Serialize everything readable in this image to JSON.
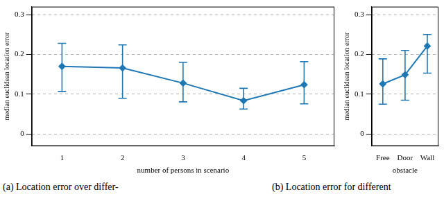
{
  "chart_data": [
    {
      "type": "line",
      "caption": "(a) Location error over differ-",
      "x_label": "number of persons in scenario",
      "y_label": "median euclidean location error",
      "x": [
        1,
        2,
        3,
        4,
        5
      ],
      "values": [
        0.17,
        0.166,
        0.128,
        0.084,
        0.124
      ],
      "error_low": [
        0.107,
        0.09,
        0.081,
        0.063,
        0.076
      ],
      "error_high": [
        0.228,
        0.224,
        0.18,
        0.115,
        0.182
      ],
      "color": "#1f78b4",
      "marker": "diamond",
      "xlim": [
        0.5,
        5.5
      ],
      "xticks": [
        1,
        2,
        3,
        4,
        5
      ],
      "ylim": [
        -0.03,
        0.32
      ],
      "yticks": [
        0,
        0.1,
        0.2,
        0.3
      ],
      "grid": true
    },
    {
      "type": "line",
      "caption": "(b) Location error for different",
      "x_label": "obstacle",
      "y_label": "median euclidean location error",
      "categories": [
        "Free",
        "Door",
        "Wall"
      ],
      "values": [
        0.126,
        0.149,
        0.221
      ],
      "error_low": [
        0.075,
        0.085,
        0.153
      ],
      "error_high": [
        0.189,
        0.21,
        0.25
      ],
      "color": "#1f78b4",
      "marker": "diamond",
      "ylim": [
        -0.03,
        0.32
      ],
      "yticks": [
        0,
        0.1,
        0.2,
        0.3
      ],
      "grid": true
    }
  ]
}
